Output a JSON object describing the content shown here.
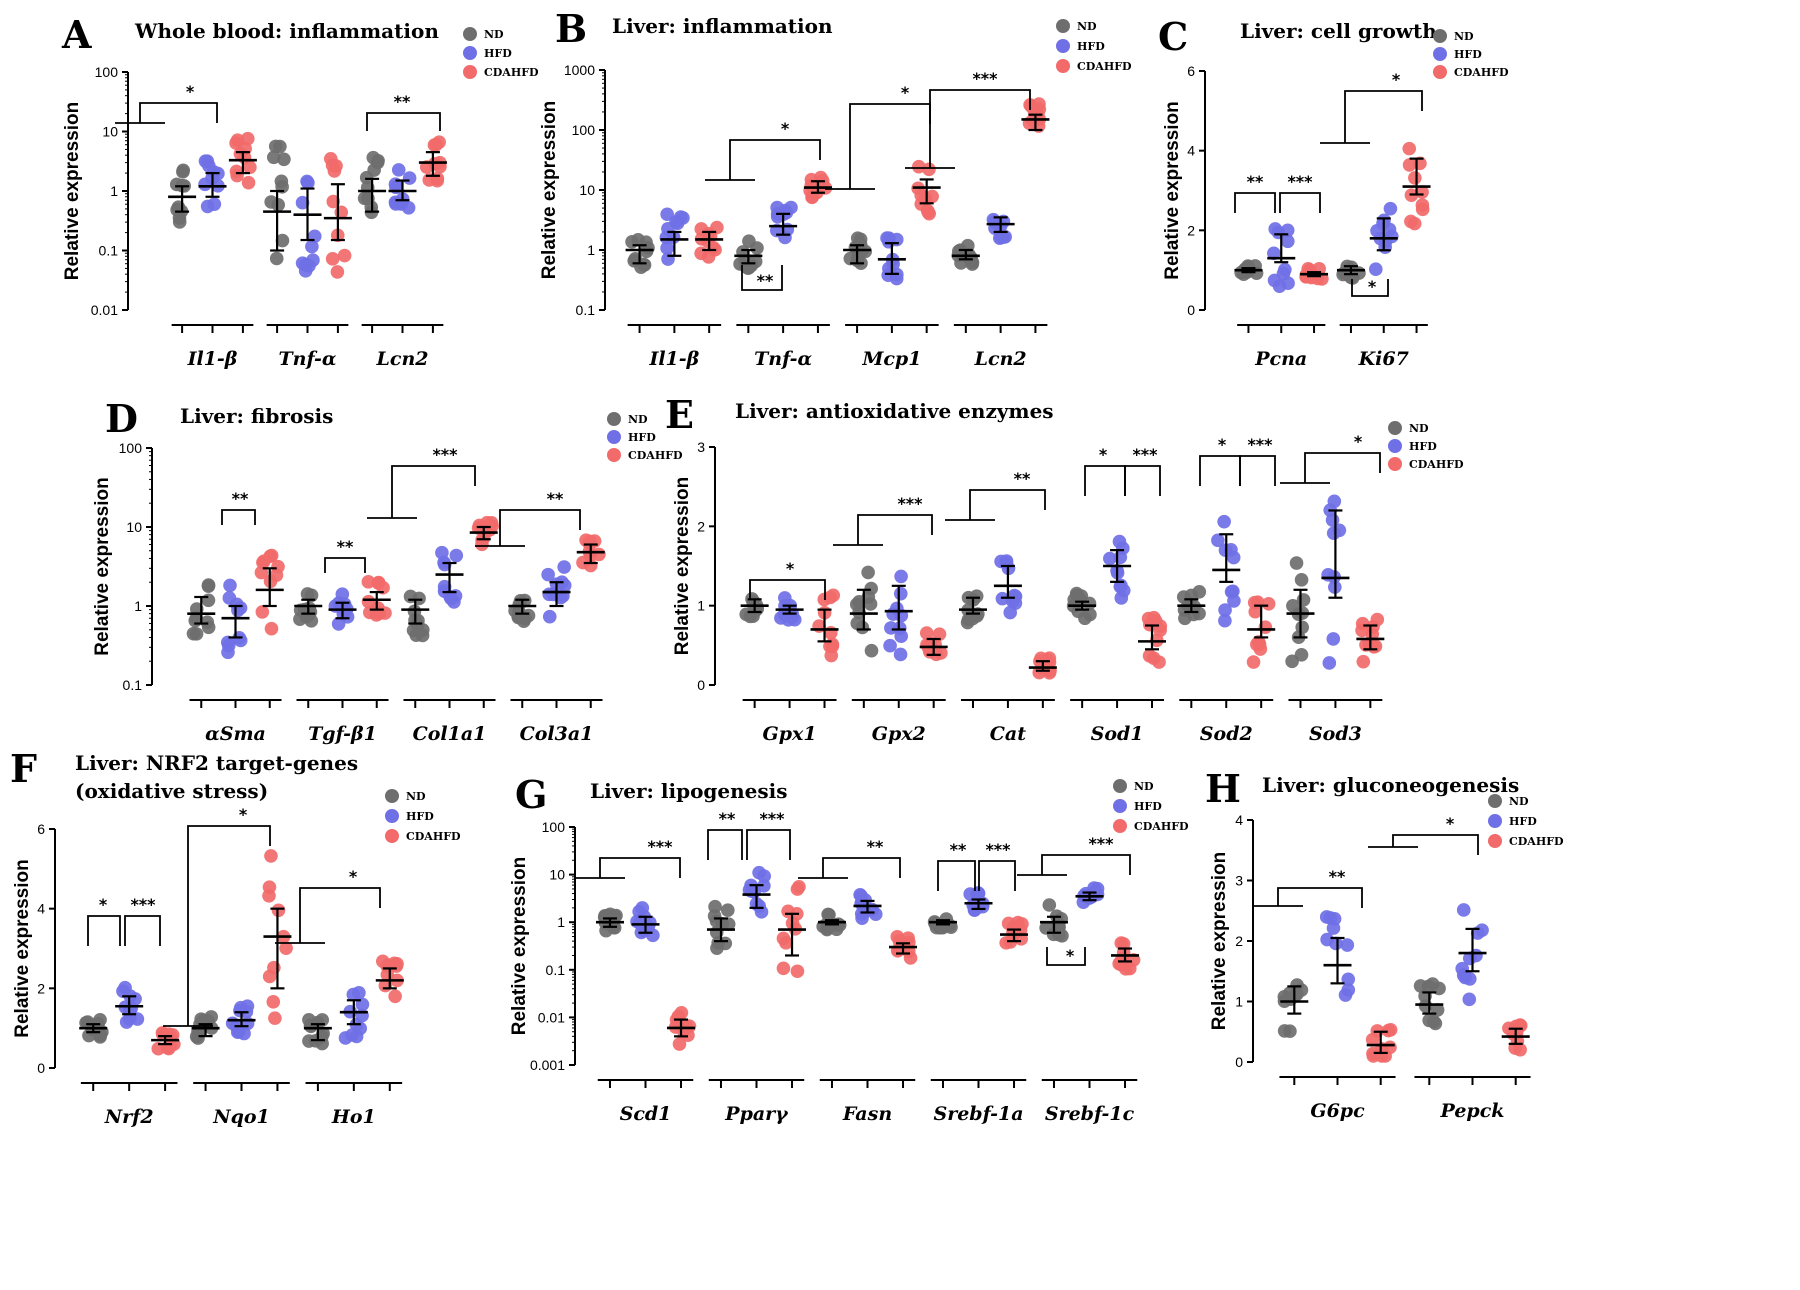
{
  "legend": [
    "ND",
    "HFD",
    "CDAHFD"
  ],
  "colors": {
    "ND": "#6e6e6e",
    "HFD": "#6f6fe6",
    "CDAHFD": "#f26a6a"
  },
  "chart_data": [
    {
      "panel": "A",
      "title": "Whole blood: inflammation",
      "type": "scatter",
      "scale": "log",
      "ylabel": "Relative expression",
      "yticks": [
        "0.01",
        "0.1",
        "1",
        "10",
        "100"
      ],
      "ylim": [
        0.01,
        100
      ],
      "categories": [
        "Il1-β",
        "Tnf-α",
        "Lcn2"
      ],
      "series": [
        {
          "name": "ND",
          "medians": [
            0.8,
            0.45,
            1.0
          ],
          "iqr": [
            [
              0.45,
              1.2
            ],
            [
              0.1,
              1.0
            ],
            [
              0.45,
              1.6
            ]
          ]
        },
        {
          "name": "HFD",
          "medians": [
            1.2,
            0.4,
            1.0
          ],
          "iqr": [
            [
              0.8,
              2.0
            ],
            [
              0.15,
              1.1
            ],
            [
              0.7,
              1.5
            ]
          ]
        },
        {
          "name": "CDAHFD",
          "medians": [
            3.3,
            0.35,
            3.0
          ],
          "iqr": [
            [
              2.0,
              4.5
            ],
            [
              0.15,
              1.3
            ],
            [
              1.8,
              4.5
            ]
          ]
        }
      ],
      "significance": [
        {
          "label": "*"
        },
        {
          "label": "**"
        }
      ]
    },
    {
      "panel": "B",
      "title": "Liver: inflammation",
      "type": "scatter",
      "scale": "log",
      "ylabel": "Relative expression",
      "yticks": [
        "0.1",
        "1",
        "10",
        "100",
        "1000"
      ],
      "ylim": [
        0.1,
        1000
      ],
      "categories": [
        "Il1-β",
        "Tnf-α",
        "Mcp1",
        "Lcn2"
      ],
      "series": [
        {
          "name": "ND",
          "medians": [
            1.0,
            0.8,
            1.0,
            0.8
          ],
          "iqr": [
            [
              0.6,
              1.2
            ],
            [
              0.6,
              1.0
            ],
            [
              0.6,
              1.2
            ],
            [
              0.7,
              1.0
            ]
          ]
        },
        {
          "name": "HFD",
          "medians": [
            1.5,
            2.5,
            0.7,
            2.7
          ],
          "iqr": [
            [
              0.8,
              2.0
            ],
            [
              1.8,
              4.0
            ],
            [
              0.4,
              1.3
            ],
            [
              2.0,
              3.5
            ]
          ]
        },
        {
          "name": "CDAHFD",
          "medians": [
            1.5,
            11.0,
            11.0,
            150.0
          ],
          "iqr": [
            [
              1.0,
              2.0
            ],
            [
              9.0,
              14.0
            ],
            [
              6.0,
              15.0
            ],
            [
              100.0,
              180.0
            ]
          ]
        }
      ],
      "significance": [
        {
          "label": "*"
        },
        {
          "label": "*"
        },
        {
          "label": "***"
        },
        {
          "label": "**"
        }
      ]
    },
    {
      "panel": "C",
      "title": "Liver: cell growth",
      "type": "scatter",
      "scale": "linear",
      "ylabel": "Relative expression",
      "yticks": [
        "0",
        "2",
        "4",
        "6"
      ],
      "ylim": [
        0,
        6
      ],
      "categories": [
        "Pcna",
        "Ki67"
      ],
      "series": [
        {
          "name": "ND",
          "medians": [
            1.0,
            1.0
          ],
          "iqr": [
            [
              0.95,
              1.05
            ],
            [
              0.9,
              1.1
            ]
          ]
        },
        {
          "name": "HFD",
          "medians": [
            1.3,
            1.8
          ],
          "iqr": [
            [
              1.2,
              1.9
            ],
            [
              1.5,
              2.3
            ]
          ]
        },
        {
          "name": "CDAHFD",
          "medians": [
            0.9,
            3.1
          ],
          "iqr": [
            [
              0.85,
              0.95
            ],
            [
              2.9,
              3.8
            ]
          ]
        }
      ],
      "significance": [
        {
          "label": "**"
        },
        {
          "label": "***"
        },
        {
          "label": "*"
        },
        {
          "label": "*"
        }
      ]
    },
    {
      "panel": "D",
      "title": "Liver: fibrosis",
      "type": "scatter",
      "scale": "log",
      "ylabel": "Relative expression",
      "yticks": [
        "0.1",
        "1",
        "10",
        "100"
      ],
      "ylim": [
        0.1,
        100
      ],
      "categories": [
        "αSma",
        "Tgf-β1",
        "Col1a1",
        "Col3a1"
      ],
      "series": [
        {
          "name": "ND",
          "medians": [
            0.8,
            1.0,
            0.9,
            1.0
          ],
          "iqr": [
            [
              0.6,
              1.3
            ],
            [
              0.8,
              1.2
            ],
            [
              0.6,
              1.2
            ],
            [
              0.8,
              1.2
            ]
          ]
        },
        {
          "name": "HFD",
          "medians": [
            0.7,
            0.9,
            2.5,
            1.5
          ],
          "iqr": [
            [
              0.4,
              1.0
            ],
            [
              0.7,
              1.1
            ],
            [
              1.5,
              3.5
            ],
            [
              1.0,
              2.0
            ]
          ]
        },
        {
          "name": "CDAHFD",
          "medians": [
            1.6,
            1.2,
            8.5,
            4.8
          ],
          "iqr": [
            [
              1.0,
              3.0
            ],
            [
              0.9,
              1.5
            ],
            [
              7.0,
              10.0
            ],
            [
              3.5,
              6.0
            ]
          ]
        }
      ],
      "significance": [
        {
          "label": "**"
        },
        {
          "label": "**"
        },
        {
          "label": "***"
        },
        {
          "label": "**"
        }
      ]
    },
    {
      "panel": "E",
      "title": "Liver: antioxidative enzymes",
      "type": "scatter",
      "scale": "linear",
      "ylabel": "Relative expression",
      "yticks": [
        "0",
        "1",
        "2",
        "3"
      ],
      "ylim": [
        0,
        3
      ],
      "categories": [
        "Gpx1",
        "Gpx2",
        "Cat",
        "Sod1",
        "Sod2",
        "Sod3"
      ],
      "series": [
        {
          "name": "ND",
          "medians": [
            1.0,
            0.9,
            0.95,
            1.0,
            1.0,
            0.9
          ],
          "iqr": [
            [
              0.92,
              1.08
            ],
            [
              0.7,
              1.2
            ],
            [
              0.9,
              1.1
            ],
            [
              0.95,
              1.05
            ],
            [
              0.92,
              1.08
            ],
            [
              0.6,
              1.2
            ]
          ]
        },
        {
          "name": "HFD",
          "medians": [
            0.95,
            0.93,
            1.25,
            1.5,
            1.45,
            1.35
          ],
          "iqr": [
            [
              0.9,
              1.0
            ],
            [
              0.7,
              1.25
            ],
            [
              1.1,
              1.5
            ],
            [
              1.3,
              1.7
            ],
            [
              1.3,
              1.9
            ],
            [
              1.1,
              2.2
            ]
          ]
        },
        {
          "name": "CDAHFD",
          "medians": [
            0.7,
            0.48,
            0.22,
            0.55,
            0.7,
            0.58
          ],
          "iqr": [
            [
              0.55,
              0.95
            ],
            [
              0.38,
              0.58
            ],
            [
              0.18,
              0.3
            ],
            [
              0.45,
              0.75
            ],
            [
              0.6,
              1.0
            ],
            [
              0.45,
              0.75
            ]
          ]
        }
      ],
      "significance": [
        {
          "label": "*"
        },
        {
          "label": "***"
        },
        {
          "label": "**"
        },
        {
          "label": "*"
        },
        {
          "label": "***"
        },
        {
          "label": "*"
        },
        {
          "label": "***"
        },
        {
          "label": "*"
        }
      ]
    },
    {
      "panel": "F",
      "title": "Liver: NRF2 target-genes",
      "subtitle": "(oxidative stress)",
      "type": "scatter",
      "scale": "linear",
      "ylabel": "Relative expression",
      "yticks": [
        "0",
        "2",
        "4",
        "6"
      ],
      "ylim": [
        0,
        6
      ],
      "categories": [
        "Nrf2",
        "Nqo1",
        "Ho1"
      ],
      "series": [
        {
          "name": "ND",
          "medians": [
            1.0,
            1.0,
            1.0
          ],
          "iqr": [
            [
              0.9,
              1.1
            ],
            [
              0.8,
              1.1
            ],
            [
              0.7,
              1.1
            ]
          ]
        },
        {
          "name": "HFD",
          "medians": [
            1.55,
            1.2,
            1.4
          ],
          "iqr": [
            [
              1.35,
              1.8
            ],
            [
              1.05,
              1.4
            ],
            [
              1.1,
              1.7
            ]
          ]
        },
        {
          "name": "CDAHFD",
          "medians": [
            0.7,
            3.3,
            2.2
          ],
          "iqr": [
            [
              0.6,
              0.8
            ],
            [
              2.0,
              4.0
            ],
            [
              2.0,
              2.5
            ]
          ]
        }
      ],
      "significance": [
        {
          "label": "*"
        },
        {
          "label": "***"
        },
        {
          "label": "*"
        },
        {
          "label": "*"
        }
      ]
    },
    {
      "panel": "G",
      "title": "Liver: lipogenesis",
      "type": "scatter",
      "scale": "log",
      "ylabel": "Relative expression",
      "yticks": [
        "0.001",
        "0.01",
        "0.1",
        "1",
        "10",
        "100"
      ],
      "ylim": [
        0.001,
        100
      ],
      "categories": [
        "Scd1",
        "Pparγ",
        "Fasn",
        "Srebf-1a",
        "Srebf-1c"
      ],
      "series": [
        {
          "name": "ND",
          "medians": [
            1.0,
            0.7,
            1.0,
            1.0,
            1.0
          ],
          "iqr": [
            [
              0.8,
              1.2
            ],
            [
              0.4,
              1.2
            ],
            [
              0.9,
              1.1
            ],
            [
              0.9,
              1.1
            ],
            [
              0.6,
              1.3
            ]
          ]
        },
        {
          "name": "HFD",
          "medians": [
            0.9,
            3.8,
            2.2,
            2.5,
            3.5
          ],
          "iqr": [
            [
              0.6,
              1.3
            ],
            [
              2.0,
              6.0
            ],
            [
              1.6,
              2.8
            ],
            [
              1.9,
              3.0
            ],
            [
              2.9,
              4.2
            ]
          ]
        },
        {
          "name": "CDAHFD",
          "medians": [
            0.006,
            0.7,
            0.3,
            0.55,
            0.2
          ],
          "iqr": [
            [
              0.004,
              0.009
            ],
            [
              0.2,
              1.5
            ],
            [
              0.22,
              0.36
            ],
            [
              0.4,
              0.7
            ],
            [
              0.15,
              0.28
            ]
          ]
        }
      ],
      "significance": [
        {
          "label": "***"
        },
        {
          "label": "**"
        },
        {
          "label": "***"
        },
        {
          "label": "**"
        },
        {
          "label": "**"
        },
        {
          "label": "***"
        },
        {
          "label": "***"
        },
        {
          "label": "*"
        }
      ]
    },
    {
      "panel": "H",
      "title": "Liver: gluconeogenesis",
      "type": "scatter",
      "scale": "linear",
      "ylabel": "Relative expression",
      "yticks": [
        "0",
        "1",
        "2",
        "3",
        "4"
      ],
      "ylim": [
        0,
        4
      ],
      "categories": [
        "G6pc",
        "Pepck"
      ],
      "series": [
        {
          "name": "ND",
          "medians": [
            1.0,
            0.95
          ],
          "iqr": [
            [
              0.8,
              1.25
            ],
            [
              0.8,
              1.15
            ]
          ]
        },
        {
          "name": "HFD",
          "medians": [
            1.6,
            1.8
          ],
          "iqr": [
            [
              1.3,
              2.05
            ],
            [
              1.5,
              2.2
            ]
          ]
        },
        {
          "name": "CDAHFD",
          "medians": [
            0.28,
            0.42
          ],
          "iqr": [
            [
              0.15,
              0.5
            ],
            [
              0.3,
              0.55
            ]
          ]
        }
      ],
      "significance": [
        {
          "label": "**"
        },
        {
          "label": "*"
        }
      ]
    }
  ]
}
